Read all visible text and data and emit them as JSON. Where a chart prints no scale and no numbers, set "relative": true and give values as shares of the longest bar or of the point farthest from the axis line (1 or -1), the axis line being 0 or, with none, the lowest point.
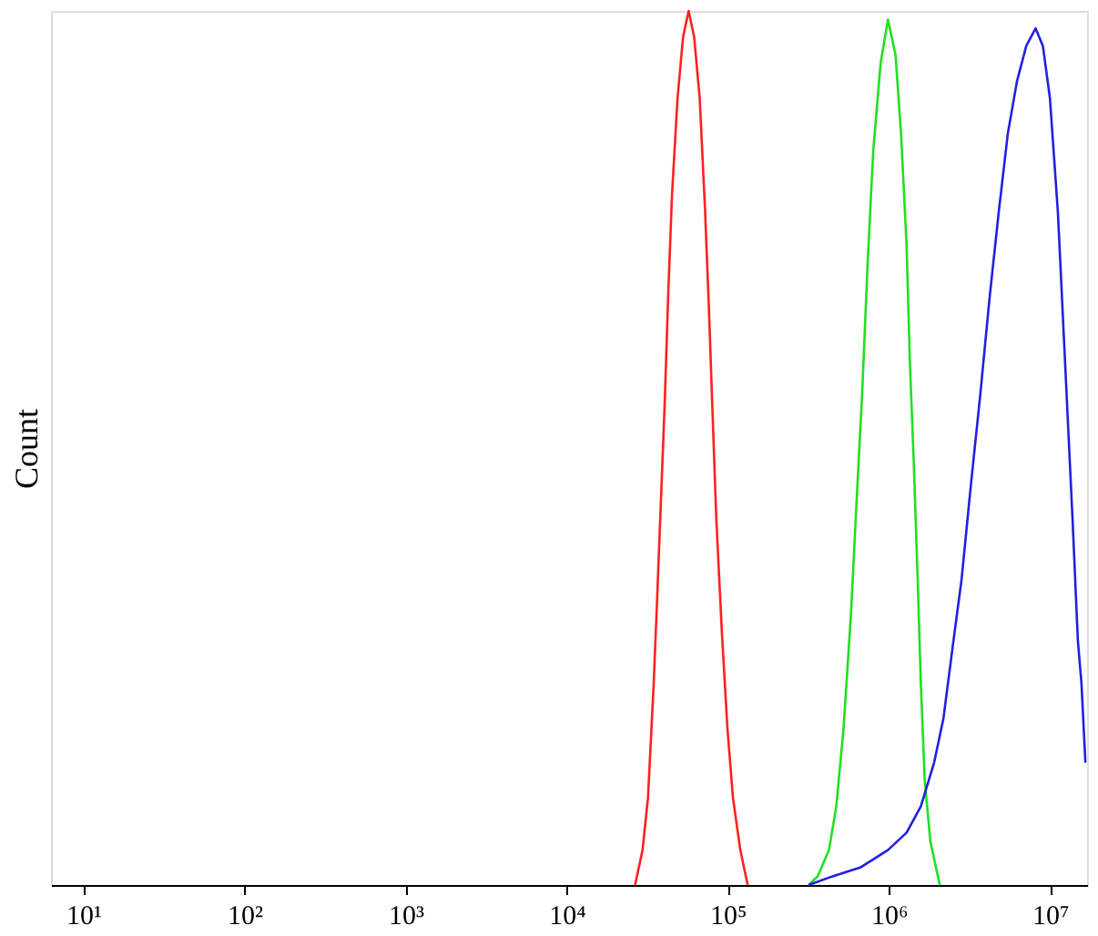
{
  "chart_data": {
    "type": "line",
    "ylabel": "Count",
    "relative": true,
    "tick_labels": "x",
    "log": "x",
    "grid": false,
    "xlim": [
      6.3,
      17000000
    ],
    "xticks": [
      {
        "value": 10,
        "label": "10¹"
      },
      {
        "value": 100,
        "label": "10²"
      },
      {
        "value": 1000,
        "label": "10³"
      },
      {
        "value": 10000,
        "label": "10⁴"
      },
      {
        "value": 100000,
        "label": "10⁵"
      },
      {
        "value": 1000000,
        "label": "10⁶"
      },
      {
        "value": 10000000,
        "label": "10⁷"
      }
    ],
    "series": [
      {
        "color": "#ff2020",
        "x": [
          26600,
          29600,
          32000,
          34700,
          36500,
          38500,
          40600,
          42800,
          45100,
          48800,
          52800,
          57200,
          61900,
          67000,
          72400,
          76400,
          80500,
          84900,
          91900,
          99500,
          107700,
          119700,
          133000
        ],
        "values": [
          0,
          0.04,
          0.1,
          0.23,
          0.33,
          0.44,
          0.55,
          0.68,
          0.79,
          0.9,
          0.97,
          1,
          0.97,
          0.9,
          0.77,
          0.66,
          0.54,
          0.42,
          0.29,
          0.18,
          0.1,
          0.04,
          0
        ]
      },
      {
        "color": "#20e020",
        "x": [
          318000,
          362000,
          425000,
          472000,
          524000,
          582000,
          631000,
          682000,
          738000,
          800000,
          889000,
          987000,
          1100000,
          1190000,
          1290000,
          1350000,
          1430000,
          1510000,
          1580000,
          1670000,
          1810000,
          2070000
        ],
        "values": [
          0,
          0.01,
          0.04,
          0.09,
          0.18,
          0.31,
          0.44,
          0.56,
          0.71,
          0.84,
          0.94,
          0.99,
          0.95,
          0.86,
          0.73,
          0.6,
          0.48,
          0.35,
          0.23,
          0.12,
          0.05,
          0
        ]
      },
      {
        "color": "#2020e0",
        "x": [
          318000,
          448000,
          664000,
          987000,
          1290000,
          1580000,
          1910000,
          2180000,
          2480000,
          2830000,
          3240000,
          3690000,
          4210000,
          4810000,
          5480000,
          6250000,
          7130000,
          8150000,
          9040000,
          10000000,
          11200000,
          12400000,
          13800000,
          14900000,
          15700000,
          16600000
        ],
        "values": [
          0,
          0.01,
          0.02,
          0.04,
          0.06,
          0.09,
          0.14,
          0.19,
          0.27,
          0.35,
          0.46,
          0.56,
          0.67,
          0.77,
          0.86,
          0.92,
          0.96,
          0.98,
          0.96,
          0.9,
          0.77,
          0.6,
          0.42,
          0.28,
          0.23,
          0.14
        ]
      }
    ]
  }
}
